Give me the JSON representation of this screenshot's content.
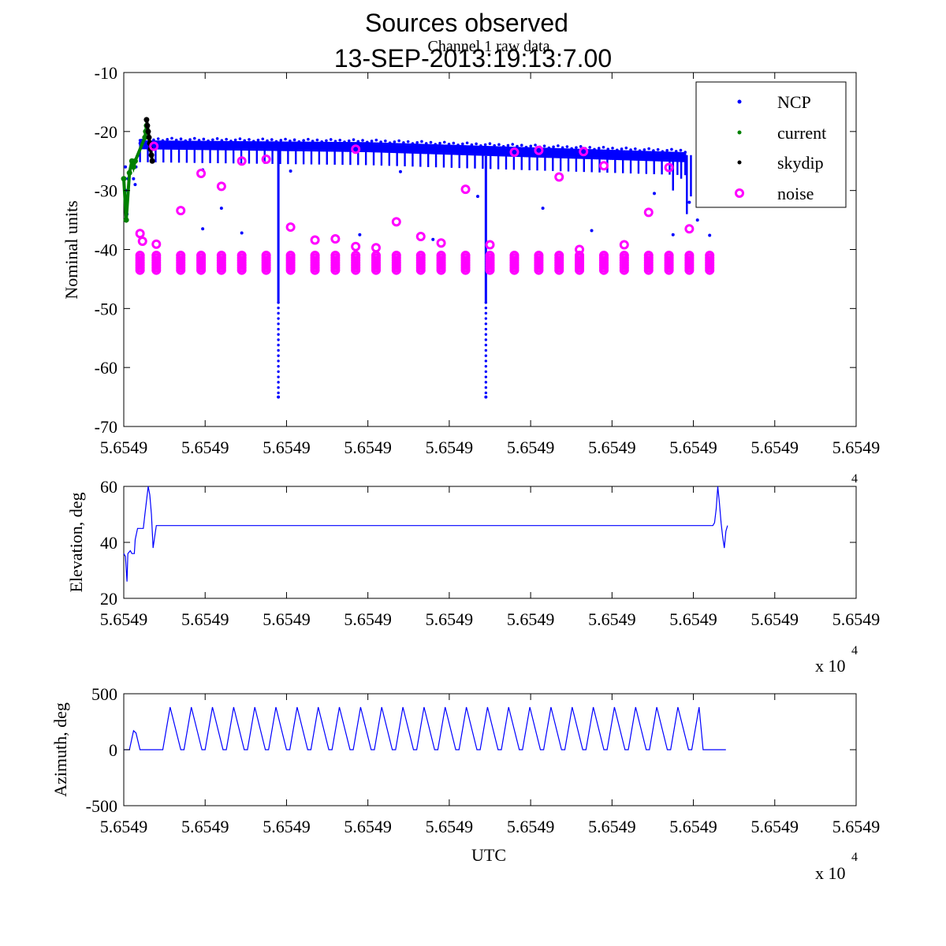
{
  "figure": {
    "title_line1": "Sources observed",
    "title_line2": "13-SEP-2013:19:13:7.00",
    "subtitle": "Channel 1 raw data"
  },
  "colors": {
    "ncp": "#0000ff",
    "current": "#008000",
    "skydip": "#000000",
    "noise": "#ff00ff",
    "axis": "#000000"
  },
  "chart_data": [
    {
      "id": "raw",
      "type": "scatter",
      "title": "Channel 1 raw data",
      "xlabel": "",
      "ylabel": "Nominal units",
      "xlim": [
        0,
        9
      ],
      "ylim": [
        -70,
        -10
      ],
      "yticks": [
        -70,
        -60,
        -50,
        -40,
        -30,
        -20,
        -10
      ],
      "xtick_labels": [
        "5.6549",
        "5.6549",
        "5.6549",
        "5.6549",
        "5.6549",
        "5.6549",
        "5.6549",
        "5.6549",
        "5.6549",
        "5.6549"
      ],
      "legend_position": "top-right",
      "legend": [
        {
          "name": "NCP",
          "marker": "dot",
          "color_key": "ncp"
        },
        {
          "name": "current",
          "marker": "dot",
          "color_key": "current"
        },
        {
          "name": "skydip",
          "marker": "dot",
          "color_key": "skydip"
        },
        {
          "name": "noise",
          "marker": "ring",
          "color_key": "noise"
        }
      ],
      "ncp_band": {
        "x_start": 0.2,
        "x_end": 6.9,
        "upper": [
          [
            0.2,
            -21.5
          ],
          [
            3.0,
            -21.8
          ],
          [
            6.9,
            -23.5
          ]
        ],
        "lower": [
          [
            0.2,
            -23
          ],
          [
            3.0,
            -23.5
          ],
          [
            6.9,
            -25.2
          ]
        ]
      },
      "ncp_dips": [
        {
          "x": 1.9,
          "min": -65
        },
        {
          "x": 4.45,
          "min": -65
        }
      ],
      "series": [
        {
          "name": "NCP",
          "color_key": "ncp",
          "marker": "dot",
          "points": [
            [
              0.02,
              -26
            ],
            [
              0.03,
              -30
            ],
            [
              0.04,
              -34
            ],
            [
              0.05,
              -28
            ],
            [
              0.12,
              -28
            ],
            [
              0.14,
              -29
            ],
            [
              0.15,
              -26
            ],
            [
              0.18,
              -24
            ],
            [
              0.2,
              -22
            ],
            [
              0.22,
              -21.5
            ],
            [
              0.25,
              -21
            ],
            [
              0.97,
              -26.5
            ],
            [
              0.97,
              -36.5
            ],
            [
              1.2,
              -33
            ],
            [
              1.45,
              -37.2
            ],
            [
              2.05,
              -26.7
            ],
            [
              2.9,
              -37.5
            ],
            [
              3.4,
              -26.8
            ],
            [
              3.8,
              -38.3
            ],
            [
              4.35,
              -31
            ],
            [
              5.15,
              -33
            ],
            [
              5.75,
              -36.8
            ],
            [
              6.52,
              -30.5
            ],
            [
              6.75,
              -37.5
            ],
            [
              6.95,
              -32
            ],
            [
              7.05,
              -35
            ],
            [
              7.2,
              -37.6
            ]
          ]
        },
        {
          "name": "current",
          "color_key": "current",
          "marker": "dot",
          "points": [
            [
              0.0,
              -28
            ],
            [
              0.03,
              -35
            ],
            [
              0.07,
              -27
            ],
            [
              0.1,
              -25
            ],
            [
              0.12,
              -26
            ],
            [
              0.14,
              -25
            ],
            [
              0.26,
              -21
            ],
            [
              0.27,
              -20
            ],
            [
              0.28,
              -19
            ]
          ]
        },
        {
          "name": "skydip",
          "color_key": "skydip",
          "marker": "dot",
          "points": [
            [
              0.28,
              -18
            ],
            [
              0.29,
              -19
            ],
            [
              0.3,
              -20
            ],
            [
              0.31,
              -21
            ],
            [
              0.32,
              -22
            ],
            [
              0.33,
              -23
            ],
            [
              0.34,
              -24
            ],
            [
              0.35,
              -25
            ]
          ]
        },
        {
          "name": "noise",
          "color_key": "noise",
          "marker": "ring",
          "points": [
            [
              0.37,
              -22.5
            ],
            [
              0.2,
              -37.3
            ],
            [
              0.23,
              -38.6
            ],
            [
              0.4,
              -39.1
            ],
            [
              0.7,
              -33.4
            ],
            [
              0.95,
              -27.1
            ],
            [
              1.2,
              -29.3
            ],
            [
              1.45,
              -25
            ],
            [
              1.75,
              -24.7
            ],
            [
              2.05,
              -36.2
            ],
            [
              2.35,
              -38.4
            ],
            [
              2.6,
              -38.2
            ],
            [
              2.85,
              -23
            ],
            [
              2.85,
              -39.5
            ],
            [
              3.1,
              -39.7
            ],
            [
              3.35,
              -35.3
            ],
            [
              3.65,
              -37.8
            ],
            [
              3.9,
              -38.9
            ],
            [
              4.2,
              -29.8
            ],
            [
              4.5,
              -39.2
            ],
            [
              4.8,
              -23.5
            ],
            [
              5.1,
              -23.2
            ],
            [
              5.35,
              -27.7
            ],
            [
              5.6,
              -40
            ],
            [
              5.65,
              -23.4
            ],
            [
              5.9,
              -25.8
            ],
            [
              6.15,
              -39.2
            ],
            [
              6.45,
              -33.7
            ],
            [
              6.7,
              -26.1
            ],
            [
              6.95,
              -36.5
            ]
          ]
        }
      ],
      "noise_clusters": {
        "x": [
          0.2,
          0.4,
          0.7,
          0.95,
          1.2,
          1.45,
          1.75,
          2.05,
          2.35,
          2.6,
          2.85,
          3.1,
          3.35,
          3.65,
          3.9,
          4.2,
          4.5,
          4.8,
          5.1,
          5.35,
          5.6,
          5.9,
          6.15,
          6.45,
          6.7,
          6.95,
          7.2
        ],
        "y_top": -41,
        "y_bottom": -43.5
      }
    },
    {
      "id": "elevation",
      "type": "line",
      "xlabel": "",
      "ylabel": "Elevation, deg",
      "xlim": [
        0,
        9
      ],
      "ylim": [
        20,
        60
      ],
      "yticks": [
        20,
        40,
        60
      ],
      "xtick_labels": [
        "5.6549",
        "5.6549",
        "5.6549",
        "5.6549",
        "5.6549",
        "5.6549",
        "5.6549",
        "5.6549",
        "5.6549",
        "5.6549"
      ],
      "exponent_label": "x 10",
      "exponent_power": "4",
      "series": [
        {
          "name": "Elevation",
          "color_key": "ncp",
          "x": [
            0.0,
            0.02,
            0.04,
            0.05,
            0.08,
            0.1,
            0.13,
            0.14,
            0.17,
            0.2,
            0.24,
            0.26,
            0.28,
            0.3,
            0.32,
            0.34,
            0.36,
            0.38,
            0.4,
            0.44,
            7.2,
            7.24,
            7.26,
            7.28,
            7.3,
            7.32,
            7.34,
            7.36,
            7.38,
            7.4,
            7.42
          ],
          "y": [
            36,
            35,
            26,
            36,
            37,
            36,
            36,
            41,
            45,
            45,
            45,
            50,
            55,
            60,
            57,
            50,
            38,
            42,
            46,
            46,
            46,
            46,
            47,
            52,
            60,
            54,
            47,
            42,
            38,
            44,
            46
          ]
        }
      ]
    },
    {
      "id": "azimuth",
      "type": "line",
      "xlabel": "UTC",
      "ylabel": "Azimuth, deg",
      "xlim": [
        0,
        9
      ],
      "ylim": [
        -500,
        500
      ],
      "yticks": [
        -500,
        0,
        500
      ],
      "xtick_labels": [
        "5.6549",
        "5.6549",
        "5.6549",
        "5.6549",
        "5.6549",
        "5.6549",
        "5.6549",
        "5.6549",
        "5.6549",
        "5.6549"
      ],
      "exponent_label": "x 10",
      "exponent_power": "4",
      "series": [
        {
          "name": "Azimuth",
          "color_key": "ncp",
          "x": [
            0.0,
            0.07,
            0.12,
            0.15,
            0.2,
            0.45,
            0.48,
            0.57,
            0.7,
            0.74,
            0.83,
            0.96,
            1.0,
            1.09,
            1.22,
            1.26,
            1.35,
            1.48,
            1.52,
            1.61,
            1.74,
            1.78,
            1.87,
            2.0,
            2.04,
            2.13,
            2.26,
            2.3,
            2.39,
            2.52,
            2.56,
            2.65,
            2.78,
            2.82,
            2.91,
            3.04,
            3.08,
            3.17,
            3.3,
            3.34,
            3.43,
            3.56,
            3.6,
            3.69,
            3.82,
            3.86,
            3.95,
            4.08,
            4.12,
            4.21,
            4.34,
            4.38,
            4.47,
            4.6,
            4.64,
            4.73,
            4.86,
            4.9,
            4.99,
            5.12,
            5.16,
            5.25,
            5.38,
            5.42,
            5.51,
            5.64,
            5.68,
            5.77,
            5.9,
            5.94,
            6.03,
            6.16,
            6.2,
            6.29,
            6.42,
            6.46,
            6.55,
            6.68,
            6.72,
            6.81,
            6.94,
            6.98,
            7.07,
            7.12,
            7.4
          ],
          "y": [
            0,
            0,
            170,
            150,
            0,
            0,
            0,
            380,
            0,
            0,
            380,
            0,
            0,
            380,
            0,
            0,
            380,
            0,
            0,
            380,
            0,
            0,
            380,
            0,
            0,
            380,
            0,
            0,
            380,
            0,
            0,
            380,
            0,
            0,
            380,
            0,
            0,
            380,
            0,
            0,
            380,
            0,
            0,
            380,
            0,
            0,
            380,
            0,
            0,
            380,
            0,
            0,
            380,
            0,
            0,
            380,
            0,
            0,
            380,
            0,
            0,
            380,
            0,
            0,
            380,
            0,
            0,
            380,
            0,
            0,
            380,
            0,
            0,
            380,
            0,
            0,
            380,
            0,
            0,
            380,
            0,
            0,
            380,
            0,
            0
          ]
        }
      ]
    }
  ]
}
